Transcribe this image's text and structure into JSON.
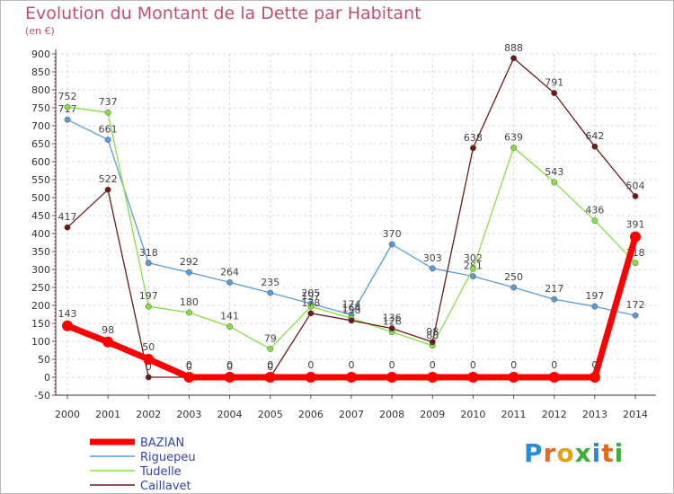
{
  "header": {
    "title": "Evolution du Montant de la Dette par Habitant",
    "unit": "(en €)"
  },
  "logo": {
    "text": "Proxiti"
  },
  "chart_data": {
    "type": "line",
    "x": [
      "2000",
      "2001",
      "2002",
      "2003",
      "2004",
      "2005",
      "2006",
      "2007",
      "2008",
      "2009",
      "2010",
      "2011",
      "2012",
      "2013",
      "2014"
    ],
    "ylim": [
      -50,
      900
    ],
    "yticks": [
      -50,
      0,
      50,
      100,
      150,
      200,
      250,
      300,
      350,
      400,
      450,
      500,
      550,
      600,
      650,
      700,
      750,
      800,
      850,
      900
    ],
    "grid": true,
    "legend_position": "bottom-left",
    "series": [
      {
        "name": "BAZIAN",
        "color": "#ff0000",
        "values": [
          143,
          98,
          50,
          0,
          0,
          0,
          0,
          0,
          0,
          0,
          0,
          0,
          0,
          0,
          391
        ]
      },
      {
        "name": "Riguepeu",
        "color": "#5b9bd5",
        "values": [
          717,
          661,
          318,
          292,
          264,
          235,
          205,
          174,
          370,
          303,
          281,
          250,
          217,
          197,
          172
        ]
      },
      {
        "name": "Tudelle",
        "color": "#88dd44",
        "values": [
          752,
          737,
          197,
          180,
          141,
          79,
          197,
          164,
          126,
          88,
          302,
          639,
          543,
          436,
          318
        ]
      },
      {
        "name": "Caillavet",
        "color": "#6b1a1a",
        "values": [
          417,
          522,
          0,
          0,
          0,
          0,
          178,
          158,
          136,
          98,
          638,
          888,
          791,
          642,
          504
        ]
      }
    ]
  }
}
